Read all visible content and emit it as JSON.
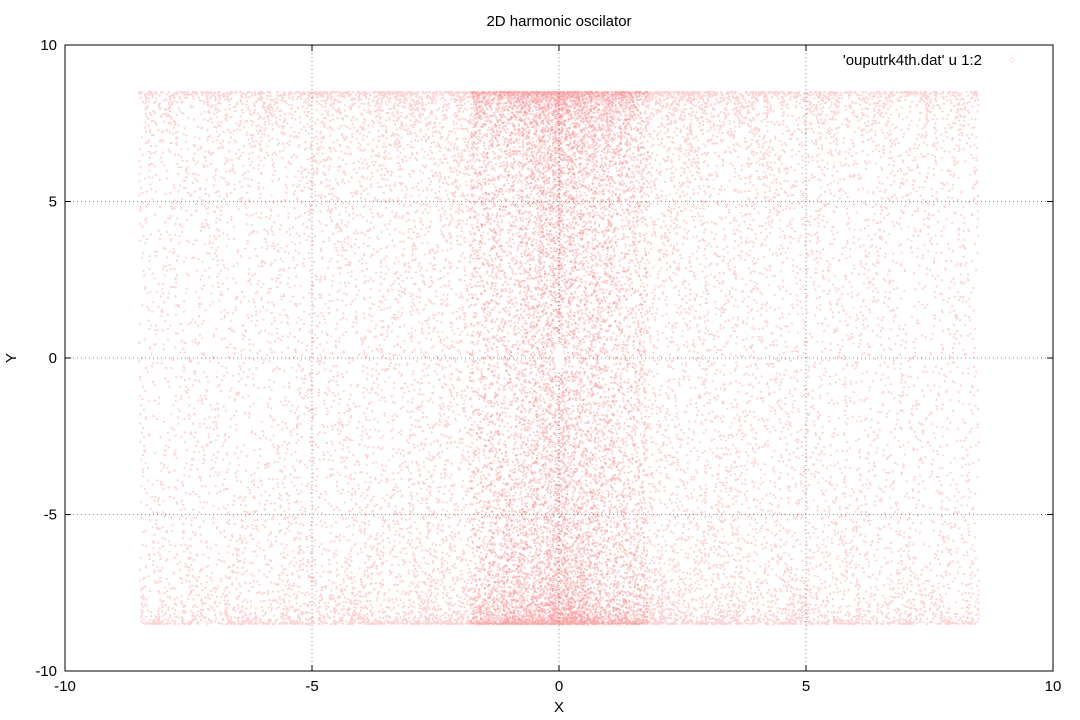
{
  "chart_data": {
    "type": "scatter",
    "title": "2D harmonic oscilator",
    "xlabel": "X",
    "ylabel": "Y",
    "xlim": [
      -10,
      10
    ],
    "ylim": [
      -10,
      10
    ],
    "x_ticks": [
      -10,
      -5,
      0,
      5,
      10
    ],
    "y_ticks": [
      -10,
      -5,
      0,
      5,
      10
    ],
    "x_tick_labels": [
      "-10",
      "-5",
      "0",
      "5",
      "10"
    ],
    "y_tick_labels": [
      "-10",
      "-5",
      "0",
      "5",
      "10"
    ],
    "grid": true,
    "legend_position": "top-right",
    "series": [
      {
        "name": "'ouputrk4th.dat' u 1:2",
        "color": "#ff0000",
        "x_amplitude": 8.5,
        "y_amplitude": 8.5,
        "x_range": [
          -8.5,
          8.5
        ],
        "y_range": [
          -8.6,
          8.6
        ]
      }
    ]
  }
}
